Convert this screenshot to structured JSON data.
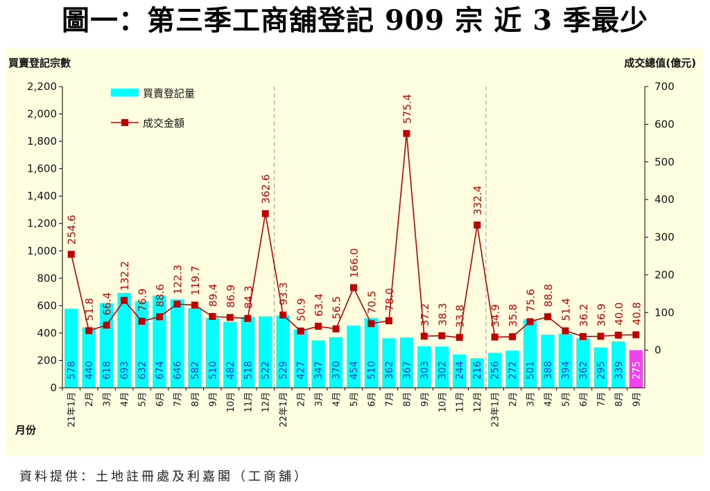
{
  "title": "圖一：第三季工商舖登記 909 宗  近 3 季最少",
  "source": "資料提供：土地註冊處及利嘉閣（工商舖）",
  "colors": {
    "bar": "#00ffff",
    "bar_highlight": "#ee44ee",
    "line": "#c00000",
    "label_red": "#cc0000",
    "label_blue": "#1a40c8",
    "panel": "#fffde0"
  },
  "chart_data": {
    "type": "bar",
    "ylabel_left": "買賣登記宗數",
    "ylabel_right": "成交總值(億元)",
    "xlabel": "月份",
    "y_left_range": [
      0,
      2200
    ],
    "y_left_ticks": [
      "0",
      "200",
      "400",
      "600",
      "800",
      "1,000",
      "1,200",
      "1,400",
      "1,600",
      "1,800",
      "2,000",
      "2,200"
    ],
    "y_right_range": [
      -100,
      700
    ],
    "y_right_ticks": [
      "0",
      "100",
      "200",
      "300",
      "400",
      "500",
      "600",
      "700"
    ],
    "legend": [
      "買賣登記量",
      "成交金額"
    ],
    "categories": [
      "21年1月",
      "2月",
      "3月",
      "4月",
      "5月",
      "6月",
      "7月",
      "8月",
      "9月",
      "10月",
      "11月",
      "12月",
      "22年1月",
      "2月",
      "3月",
      "4月",
      "5月",
      "6月",
      "7月",
      "8月",
      "9月",
      "10月",
      "11月",
      "12月",
      "23年1月",
      "2月",
      "3月",
      "4月",
      "5月",
      "6月",
      "7月",
      "8月",
      "9月"
    ],
    "bar_values": [
      578,
      440,
      618,
      693,
      632,
      674,
      646,
      582,
      510,
      482,
      518,
      522,
      529,
      427,
      347,
      370,
      454,
      510,
      362,
      367,
      303,
      302,
      244,
      216,
      256,
      272,
      501,
      388,
      394,
      362,
      295,
      339,
      275
    ],
    "bar_labels": [
      "578",
      "440",
      "618",
      "693",
      "632",
      "674",
      "646",
      "582",
      "510",
      "482",
      "518",
      "522",
      "529",
      "427",
      "347",
      "370",
      "454",
      "510",
      "362",
      "367",
      "303",
      "302",
      "244",
      "216",
      "256",
      "272",
      "501",
      "388",
      "394",
      "362",
      "295",
      "339",
      "275"
    ],
    "line_values": [
      254.6,
      51.8,
      66.4,
      132.2,
      76.9,
      88.6,
      122.3,
      119.7,
      89.4,
      86.9,
      84.3,
      362.6,
      93.3,
      50.9,
      63.4,
      56.5,
      166.0,
      70.5,
      78.0,
      575.4,
      37.2,
      38.3,
      33.8,
      332.4,
      34.9,
      35.8,
      75.6,
      88.8,
      51.4,
      36.2,
      36.9,
      40.0,
      40.8
    ],
    "line_labels": [
      "254.6",
      "51.8",
      "66.4",
      "132.2",
      "76.9",
      "88.6",
      "122.3",
      "119.7",
      "89.4",
      "86.9",
      "84.3",
      "362.6",
      "93.3",
      "50.9",
      "63.4",
      "56.5",
      "166.0",
      "70.5",
      "78.0",
      "575.4",
      "37.2",
      "38.3",
      "33.8",
      "332.4",
      "34.9",
      "35.8",
      "75.6",
      "88.8",
      "51.4",
      "36.2",
      "36.9",
      "40.0",
      "40.8"
    ],
    "highlight_index": 32,
    "year_dividers_after": [
      11,
      23
    ]
  }
}
